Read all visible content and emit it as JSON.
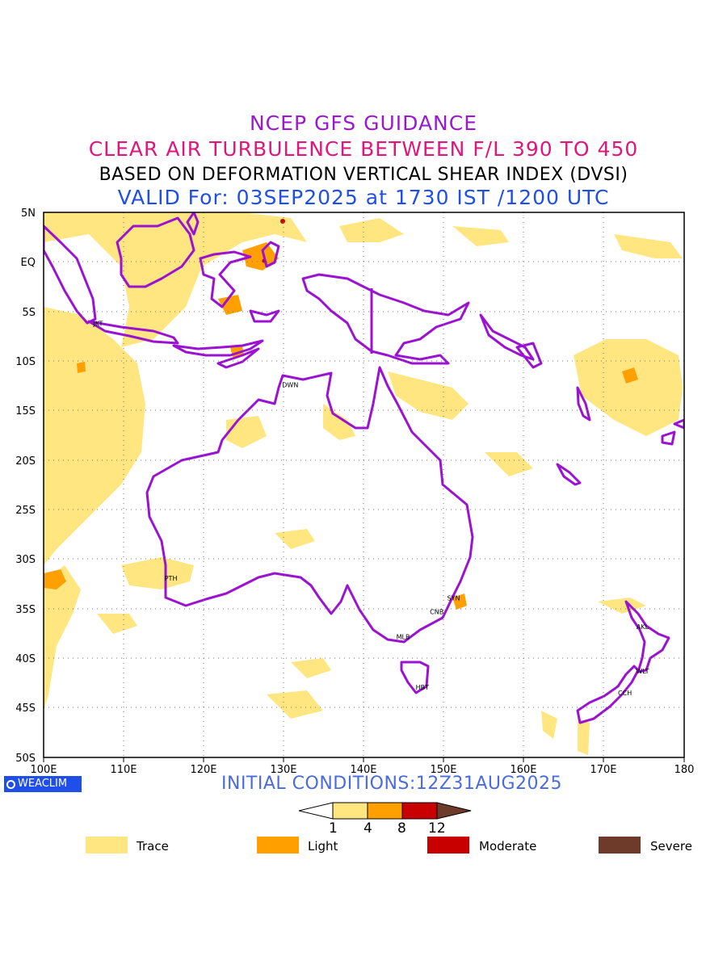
{
  "titles": {
    "line1": "NCEP GFS GUIDANCE",
    "line2": "CLEAR AIR TURBULENCE BETWEEN F/L 390 TO 450",
    "line3": "BASED ON DEFORMATION VERTICAL SHEAR INDEX (DVSI)",
    "line4": "VALID For: 03SEP2025 at 1730 IST /1200 UTC"
  },
  "colors": {
    "title1": "#9a19d0",
    "title2": "#e0177a",
    "title3": "#000000",
    "title4": "#1f4fe8",
    "coast": "#9b12d1",
    "trace": "#ffe680",
    "light": "#ffa000",
    "moderate": "#c80000",
    "severe": "#6e3b2b"
  },
  "axes": {
    "lat_labels": [
      "5N",
      "EQ",
      "5S",
      "10S",
      "15S",
      "20S",
      "25S",
      "30S",
      "35S",
      "40S",
      "45S",
      "50S"
    ],
    "lon_labels": [
      "100E",
      "110E",
      "120E",
      "130E",
      "140E",
      "150E",
      "160E",
      "170E",
      "180"
    ],
    "lat_range": [
      -50,
      5
    ],
    "lon_range": [
      100,
      180
    ],
    "grid": "dotted"
  },
  "cities": [
    {
      "code": "JKT",
      "lon": 106.8,
      "lat": -6.2
    },
    {
      "code": "DWN",
      "lon": 130.8,
      "lat": -12.4
    },
    {
      "code": "PTH",
      "lon": 115.9,
      "lat": -31.9
    },
    {
      "code": "SYN",
      "lon": 151.2,
      "lat": -33.9
    },
    {
      "code": "CNB",
      "lon": 149.1,
      "lat": -35.3
    },
    {
      "code": "MLB",
      "lon": 144.9,
      "lat": -37.8
    },
    {
      "code": "HBT",
      "lon": 147.3,
      "lat": -42.9
    },
    {
      "code": "AKL",
      "lon": 174.8,
      "lat": -36.8
    },
    {
      "code": "WLT",
      "lon": 174.8,
      "lat": -41.3
    },
    {
      "code": "CCH",
      "lon": 172.6,
      "lat": -43.5
    }
  ],
  "footer": {
    "logo": "WEACLIM",
    "initial": "INITIAL CONDITIONS:12Z31AUG2025"
  },
  "colorbar": {
    "ticks": [
      "1",
      "4",
      "8",
      "12"
    ]
  },
  "legend": [
    {
      "label": "Trace",
      "color": "#ffe680"
    },
    {
      "label": "Light",
      "color": "#ffa000"
    },
    {
      "label": "Moderate",
      "color": "#c80000"
    },
    {
      "label": "Severe",
      "color": "#6e3b2b"
    }
  ]
}
